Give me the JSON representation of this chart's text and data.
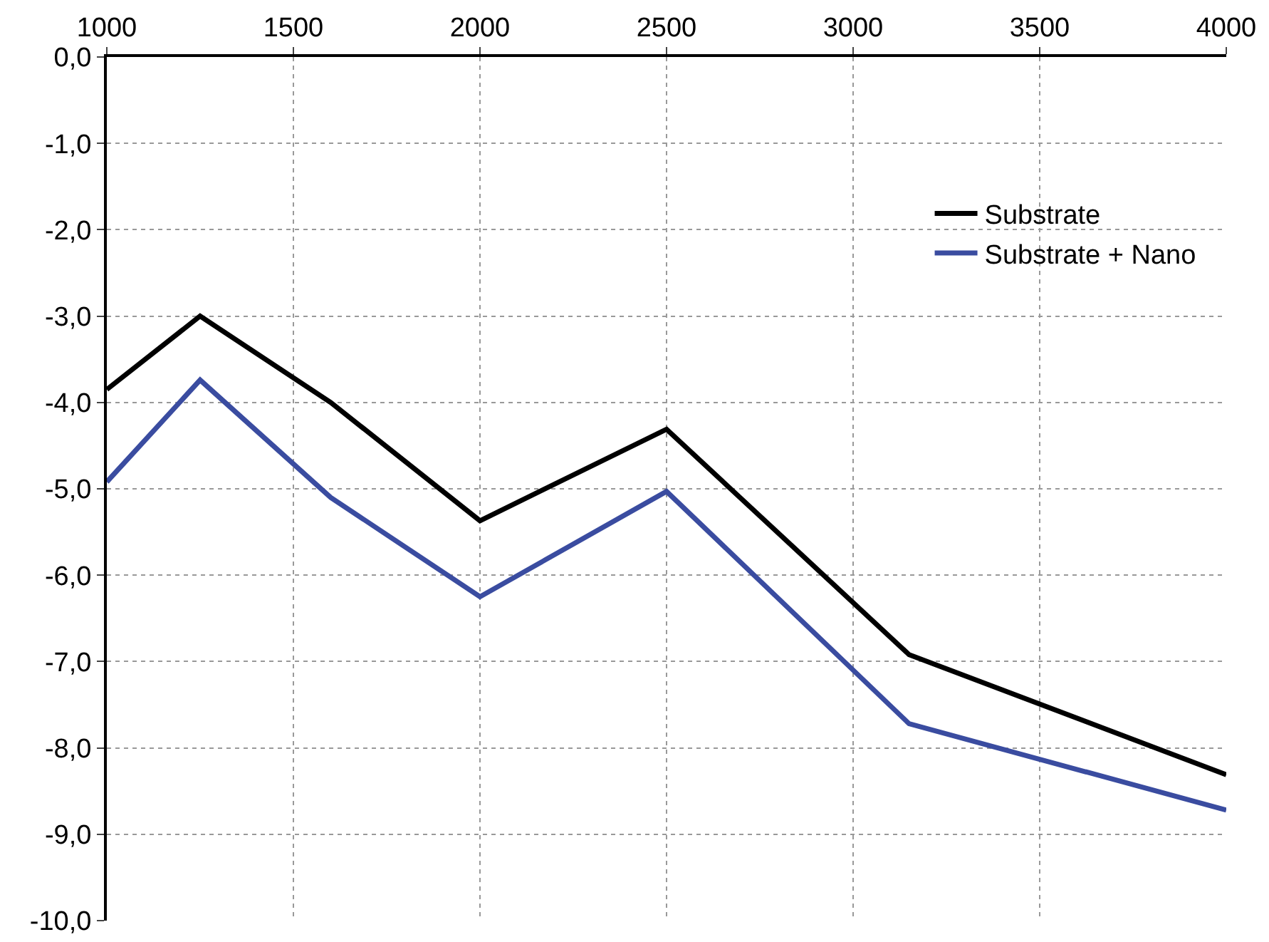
{
  "chart_data": {
    "type": "line",
    "x": [
      1000,
      1250,
      1600,
      2000,
      2500,
      3150,
      4000
    ],
    "series": [
      {
        "name": "Substrate",
        "color": "#000000",
        "values": [
          -3.85,
          -3.0,
          -4.0,
          -5.37,
          -4.31,
          -6.92,
          -8.31
        ]
      },
      {
        "name": "Substrate + Nano",
        "color": "#3a4ca0",
        "values": [
          -4.92,
          -3.74,
          -5.1,
          -6.25,
          -5.03,
          -7.72,
          -8.72
        ]
      }
    ],
    "xlim": [
      1000,
      4000
    ],
    "xticks": [
      1000,
      1500,
      2000,
      2500,
      3000,
      3500,
      4000
    ],
    "ylim": [
      -10,
      0
    ],
    "yticks": [
      {
        "value": 0,
        "label": "0,0"
      },
      {
        "value": -1,
        "label": "-1,0"
      },
      {
        "value": -2,
        "label": "-2,0"
      },
      {
        "value": -3,
        "label": "-3,0"
      },
      {
        "value": -4,
        "label": "-4,0"
      },
      {
        "value": -5,
        "label": "-5,0"
      },
      {
        "value": -6,
        "label": "-6,0"
      },
      {
        "value": -7,
        "label": "-7,0"
      },
      {
        "value": -8,
        "label": "-8,0"
      },
      {
        "value": -9,
        "label": "-9,0"
      },
      {
        "value": -10,
        "label": "-10,0"
      }
    ],
    "grid": true,
    "legend": "top right",
    "marker": "none",
    "line_style": "solid"
  }
}
